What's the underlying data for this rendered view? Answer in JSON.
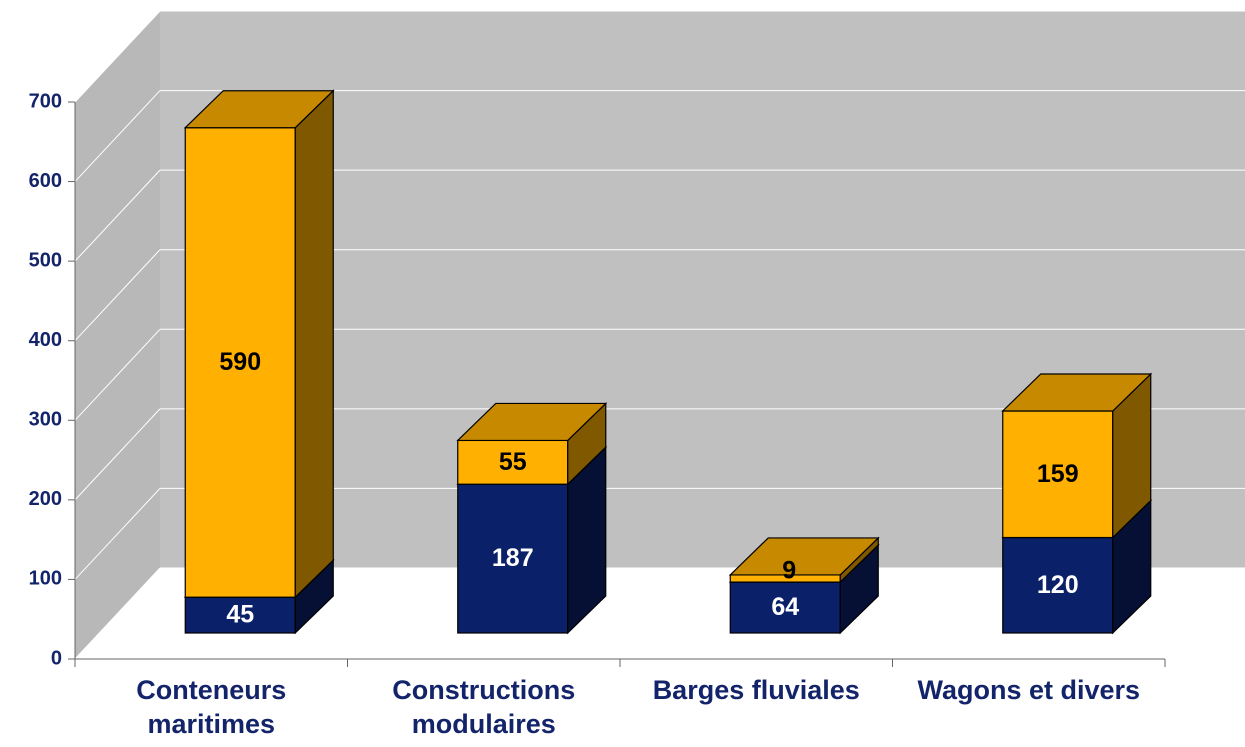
{
  "chart_data": {
    "type": "bar3d_stacked",
    "categories": [
      "Conteneurs maritimes",
      "Constructions modulaires",
      "Barges fluviales",
      "Wagons et divers"
    ],
    "series": [
      {
        "color": "#0a2068",
        "values": [
          45,
          187,
          64,
          120
        ]
      },
      {
        "color": "#ffb000",
        "values": [
          590,
          55,
          9,
          159
        ]
      }
    ],
    "ylim": [
      0,
      700
    ],
    "yticks": [
      0,
      100,
      200,
      300,
      400,
      500,
      600,
      700
    ],
    "grid": true
  }
}
